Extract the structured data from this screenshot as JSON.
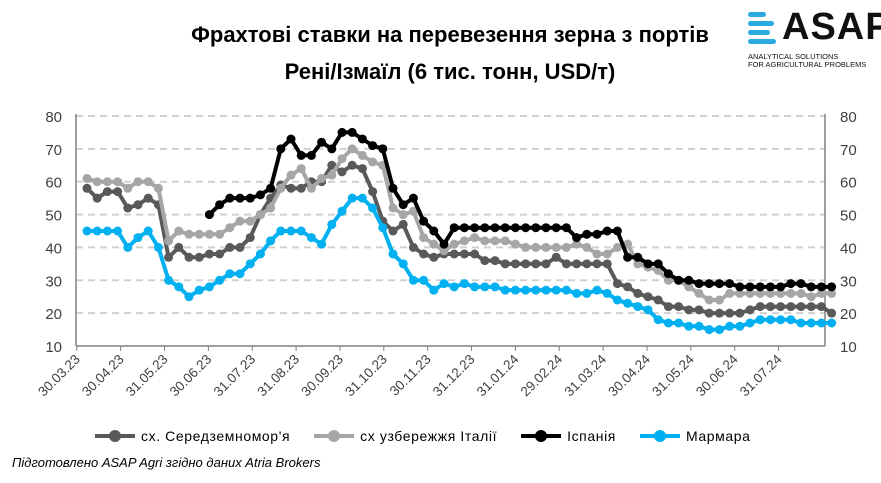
{
  "title_line1": "Фрахтові ставки на перевезення зерна з портів",
  "title_line2": "Рені/Ізмаїл (6 тис. тонн, USD/т)",
  "logo": {
    "word": "ASAP",
    "sub1": "ANALYTICAL SOLUTIONS",
    "sub2": "FOR AGRICULTURAL PROBLEMS"
  },
  "footer": "Підготовлено ASAP Agri згідно даних Atria Brokers",
  "chart_data": {
    "type": "line",
    "title": "Фрахтові ставки на перевезення зерна з портів Рені/Ізмаїл (6 тис. тонн, USD/т)",
    "xlabel": "",
    "ylabel": "USD/т",
    "ylim": [
      10,
      80
    ],
    "yticks": [
      10,
      20,
      30,
      40,
      50,
      60,
      70,
      80
    ],
    "x_unit": "weeks since 30.03.23",
    "xticks": [
      {
        "label": "30.03.23",
        "week": -1
      },
      {
        "label": "30.04.23",
        "week": 3.3
      },
      {
        "label": "31.05.23",
        "week": 7.6
      },
      {
        "label": "30.06.23",
        "week": 11.9
      },
      {
        "label": "31.07.23",
        "week": 16.2
      },
      {
        "label": "31.08.23",
        "week": 20.5
      },
      {
        "label": "30.09.23",
        "week": 24.8
      },
      {
        "label": "31.10.23",
        "week": 29.1
      },
      {
        "label": "30.11.23",
        "week": 33.4
      },
      {
        "label": "31.12.23",
        "week": 37.7
      },
      {
        "label": "31.01.24",
        "week": 42
      },
      {
        "label": "29.02.24",
        "week": 46.3
      },
      {
        "label": "31.03.24",
        "week": 50.6
      },
      {
        "label": "30.04.24",
        "week": 54.9
      },
      {
        "label": "31.05.24",
        "week": 59.2
      },
      {
        "label": "30.06.24",
        "week": 63.5
      },
      {
        "label": "31.07.24",
        "week": 67.8
      }
    ],
    "grid": true,
    "legend": "bottom",
    "series": [
      {
        "name": "сх. Середземномор'я",
        "color": "#595959",
        "values": [
          58,
          55,
          57,
          57,
          52,
          53,
          55,
          53,
          37,
          40,
          37,
          37,
          38,
          38,
          40,
          40,
          43,
          50,
          55,
          59,
          58,
          58,
          60,
          60,
          65,
          63,
          65,
          64,
          57,
          48,
          45,
          47,
          40,
          38,
          37,
          38,
          38,
          38,
          38,
          36,
          36,
          35,
          35,
          35,
          35,
          35,
          37,
          35,
          35,
          35,
          35,
          35,
          29,
          28,
          26,
          25,
          24,
          22,
          22,
          21,
          21,
          20,
          20,
          20,
          20,
          21,
          22,
          22,
          22,
          22,
          22,
          22,
          22,
          20
        ]
      },
      {
        "name": "сх узбережжя Італії",
        "color": "#a6a6a6",
        "values": [
          61,
          60,
          60,
          60,
          58,
          60,
          60,
          58,
          42,
          45,
          44,
          44,
          44,
          44,
          46,
          48,
          48,
          50,
          52,
          58,
          62,
          64,
          58,
          61,
          62,
          67,
          70,
          68,
          66,
          65,
          52,
          50,
          51,
          43,
          41,
          39,
          41,
          42,
          43,
          42,
          42,
          42,
          41,
          40,
          40,
          40,
          40,
          40,
          41,
          40,
          38,
          38,
          40,
          41,
          35,
          34,
          33,
          30,
          30,
          28,
          26,
          24,
          24,
          26,
          26,
          26,
          26,
          26,
          26,
          26,
          26,
          25,
          26,
          26
        ]
      },
      {
        "name": "Іспанія",
        "color": "#000000",
        "values": [
          null,
          null,
          null,
          null,
          null,
          null,
          null,
          null,
          null,
          null,
          null,
          null,
          50,
          53,
          55,
          55,
          55,
          56,
          58,
          70,
          73,
          68,
          68,
          72,
          70,
          75,
          75,
          73,
          71,
          70,
          58,
          53,
          55,
          48,
          45,
          41,
          46,
          46,
          46,
          46,
          46,
          46,
          46,
          46,
          46,
          46,
          46,
          46,
          43,
          44,
          44,
          45,
          45,
          37,
          37,
          35,
          35,
          32,
          30,
          30,
          29,
          29,
          29,
          29,
          28,
          28,
          28,
          28,
          28,
          29,
          29,
          28,
          28,
          28
        ]
      },
      {
        "name": "Мармара",
        "color": "#00b0f0",
        "values": [
          45,
          45,
          45,
          45,
          40,
          43,
          45,
          40,
          30,
          28,
          25,
          27,
          28,
          30,
          32,
          32,
          35,
          38,
          42,
          45,
          45,
          45,
          43,
          41,
          47,
          51,
          55,
          55,
          52,
          46,
          38,
          35,
          30,
          30,
          27,
          29,
          28,
          29,
          28,
          28,
          28,
          27,
          27,
          27,
          27,
          27,
          27,
          27,
          26,
          26,
          27,
          26,
          24,
          23,
          22,
          21,
          18,
          17,
          17,
          16,
          16,
          15,
          15,
          16,
          16,
          17,
          18,
          18,
          18,
          18,
          17,
          17,
          17,
          17
        ]
      }
    ]
  }
}
